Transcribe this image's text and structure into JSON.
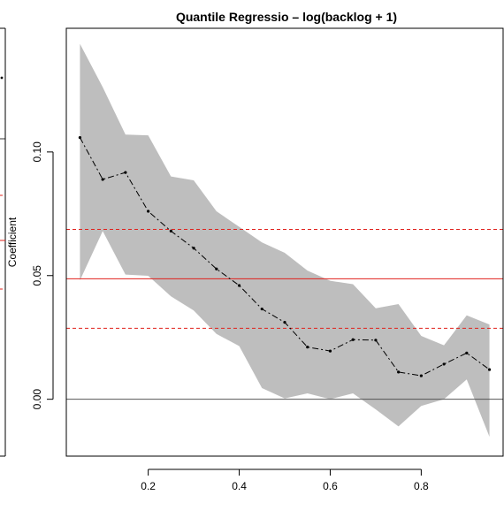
{
  "chart_data": {
    "type": "line",
    "title": "Quantile Regressio – log(backlog + 1)",
    "xlabel": "",
    "ylabel": "Coefficient",
    "xlim": [
      0.02,
      0.98
    ],
    "ylim": [
      -0.023,
      0.15
    ],
    "x_ticks": [
      "0.2",
      "0.4",
      "0.6",
      "0.8"
    ],
    "y_ticks": [
      "0.00",
      "0.05",
      "0.10"
    ],
    "x": [
      0.05,
      0.1,
      0.15,
      0.2,
      0.25,
      0.3,
      0.35,
      0.4,
      0.45,
      0.5,
      0.55,
      0.6,
      0.65,
      0.7,
      0.75,
      0.8,
      0.85,
      0.9,
      0.95
    ],
    "series": [
      {
        "values": [
          0.1058,
          0.0889,
          0.0917,
          0.076,
          0.068,
          0.0611,
          0.0527,
          0.046,
          0.0365,
          0.0311,
          0.0211,
          0.0195,
          0.0241,
          0.0239,
          0.011,
          0.0095,
          0.0142,
          0.0187,
          0.012
        ]
      }
    ],
    "band": {
      "lower": [
        0.0481,
        0.068,
        0.0504,
        0.0499,
        0.0416,
        0.0359,
        0.0264,
        0.0215,
        0.0045,
        0.0003,
        0.0024,
        0.0,
        0.0024,
        -0.0041,
        -0.011,
        -0.0027,
        0.0,
        0.008,
        -0.0152
      ],
      "upper": [
        0.1437,
        0.1262,
        0.107,
        0.1067,
        0.0901,
        0.0885,
        0.076,
        0.0697,
        0.0634,
        0.0592,
        0.052,
        0.0479,
        0.0465,
        0.0368,
        0.0385,
        0.0256,
        0.0218,
        0.0339,
        0.0302
      ],
      "color": "#bebebe"
    },
    "reference_lines": [
      {
        "y": 0.0,
        "color": "#555555",
        "style": "solid"
      },
      {
        "y": 0.0487,
        "color": "#e0201b",
        "style": "solid"
      },
      {
        "y": 0.0687,
        "color": "#e0201b",
        "style": "dashed"
      },
      {
        "y": 0.0287,
        "color": "#e0201b",
        "style": "dashed"
      }
    ],
    "grid": false,
    "legend": "none"
  },
  "left_panel": {
    "ylabel_fragment": "Coefficient"
  }
}
